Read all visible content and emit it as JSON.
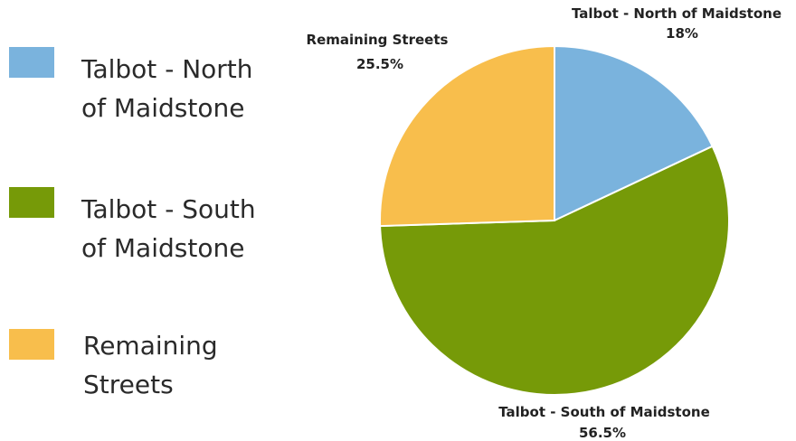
{
  "chart_data": {
    "type": "pie",
    "title": "",
    "slices": [
      {
        "label": "Talbot - North of Maidstone",
        "value": 18,
        "value_label": "18%",
        "color": "#7ab3dd"
      },
      {
        "label": "Talbot - South of Maidstone",
        "value": 56.5,
        "value_label": "56.5%",
        "color": "#769a08"
      },
      {
        "label": "Remaining Streets",
        "value": 25.5,
        "value_label": "25.5%",
        "color": "#f8be4c"
      }
    ],
    "legend": {
      "position": "left",
      "entries": [
        {
          "text": "Talbot - North of Maidstone",
          "color": "#7ab3dd"
        },
        {
          "text": "Talbot - South of Maidstone",
          "color": "#769a08"
        },
        {
          "text": "Remaining Streets",
          "color": "#f8be4c"
        }
      ]
    },
    "start_angle": "12 o'clock",
    "direction": "clockwise"
  }
}
